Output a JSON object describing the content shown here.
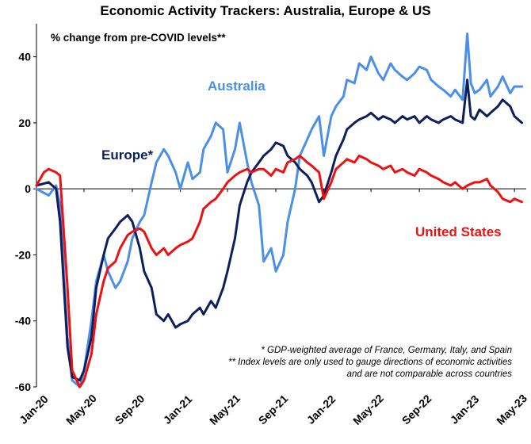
{
  "chart_data": {
    "type": "line",
    "title": "Economic Activity Trackers: Australia, Europe & US",
    "subtitle": "% change from pre-COVID levels**",
    "xlabel": "",
    "ylabel": "",
    "ylim": [
      -60,
      50
    ],
    "yticks": [
      -60,
      -40,
      -20,
      0,
      20,
      40
    ],
    "xlim": [
      "2020-01",
      "2023-05"
    ],
    "xticks": [
      "Jan-20",
      "May-20",
      "Sep-20",
      "Jan-21",
      "May-21",
      "Sep-21",
      "Jan-22",
      "May-22",
      "Sep-22",
      "Jan-23",
      "May-23"
    ],
    "grid": false,
    "series": [
      {
        "name": "Australia",
        "color": "#4a8fe8",
        "points": [
          [
            "2020-01",
            0
          ],
          [
            "2020-02",
            -2
          ],
          [
            "2020-02-20",
            1
          ],
          [
            "2020-03",
            -5
          ],
          [
            "2020-03-20",
            -45
          ],
          [
            "2020-04",
            -58
          ],
          [
            "2020-04-20",
            -60
          ],
          [
            "2020-05",
            -55
          ],
          [
            "2020-05-20",
            -40
          ],
          [
            "2020-06",
            -28
          ],
          [
            "2020-06-20",
            -20
          ],
          [
            "2020-07",
            -25
          ],
          [
            "2020-07-20",
            -30
          ],
          [
            "2020-08",
            -28
          ],
          [
            "2020-08-20",
            -22
          ],
          [
            "2020-09",
            -15
          ],
          [
            "2020-09-20",
            -10
          ],
          [
            "2020-10",
            -8
          ],
          [
            "2020-10-20",
            2
          ],
          [
            "2020-11",
            8
          ],
          [
            "2020-11-20",
            12
          ],
          [
            "2020-12",
            10
          ],
          [
            "2020-12-20",
            5
          ],
          [
            "2021-01",
            0
          ],
          [
            "2021-01-20",
            8
          ],
          [
            "2021-02",
            3
          ],
          [
            "2021-02-20",
            5
          ],
          [
            "2021-03",
            12
          ],
          [
            "2021-03-20",
            16
          ],
          [
            "2021-04",
            20
          ],
          [
            "2021-04-20",
            18
          ],
          [
            "2021-05",
            5
          ],
          [
            "2021-05-20",
            12
          ],
          [
            "2021-06",
            20
          ],
          [
            "2021-06-20",
            8
          ],
          [
            "2021-07",
            2
          ],
          [
            "2021-07-20",
            -5
          ],
          [
            "2021-08",
            -22
          ],
          [
            "2021-08-20",
            -18
          ],
          [
            "2021-09",
            -25
          ],
          [
            "2021-09-20",
            -20
          ],
          [
            "2021-10",
            -10
          ],
          [
            "2021-10-20",
            0
          ],
          [
            "2021-11",
            10
          ],
          [
            "2021-11-20",
            15
          ],
          [
            "2021-12",
            18
          ],
          [
            "2021-12-20",
            22
          ],
          [
            "2022-01",
            10
          ],
          [
            "2022-01-20",
            22
          ],
          [
            "2022-02",
            25
          ],
          [
            "2022-02-20",
            28
          ],
          [
            "2022-03",
            33
          ],
          [
            "2022-03-20",
            32
          ],
          [
            "2022-04",
            38
          ],
          [
            "2022-04-20",
            36
          ],
          [
            "2022-05",
            40
          ],
          [
            "2022-05-20",
            35
          ],
          [
            "2022-06",
            33
          ],
          [
            "2022-06-20",
            38
          ],
          [
            "2022-07",
            36
          ],
          [
            "2022-07-20",
            34
          ],
          [
            "2022-08",
            33
          ],
          [
            "2022-08-20",
            35
          ],
          [
            "2022-09",
            37
          ],
          [
            "2022-09-20",
            36
          ],
          [
            "2022-10",
            33
          ],
          [
            "2022-10-20",
            31
          ],
          [
            "2022-11",
            30
          ],
          [
            "2022-11-20",
            28
          ],
          [
            "2022-12",
            30
          ],
          [
            "2022-12-20",
            27
          ],
          [
            "2023-01",
            47
          ],
          [
            "2023-01-10",
            32
          ],
          [
            "2023-01-20",
            29
          ],
          [
            "2023-02",
            30
          ],
          [
            "2023-02-20",
            33
          ],
          [
            "2023-03",
            28
          ],
          [
            "2023-03-20",
            31
          ],
          [
            "2023-04",
            34
          ],
          [
            "2023-04-20",
            29
          ],
          [
            "2023-05",
            31
          ],
          [
            "2023-05-20",
            31
          ]
        ]
      },
      {
        "name": "Europe*",
        "color": "#0d1f5c",
        "points": [
          [
            "2020-01",
            1
          ],
          [
            "2020-02",
            2
          ],
          [
            "2020-02-20",
            0
          ],
          [
            "2020-03",
            -10
          ],
          [
            "2020-03-20",
            -48
          ],
          [
            "2020-04",
            -57
          ],
          [
            "2020-04-20",
            -58
          ],
          [
            "2020-05",
            -55
          ],
          [
            "2020-05-20",
            -45
          ],
          [
            "2020-06",
            -30
          ],
          [
            "2020-06-20",
            -20
          ],
          [
            "2020-07",
            -15
          ],
          [
            "2020-07-20",
            -12
          ],
          [
            "2020-08",
            -10
          ],
          [
            "2020-08-20",
            -8
          ],
          [
            "2020-09",
            -10
          ],
          [
            "2020-09-20",
            -18
          ],
          [
            "2020-10",
            -25
          ],
          [
            "2020-10-20",
            -30
          ],
          [
            "2020-11",
            -38
          ],
          [
            "2020-11-20",
            -40
          ],
          [
            "2020-12",
            -38
          ],
          [
            "2020-12-20",
            -42
          ],
          [
            "2021-01",
            -41
          ],
          [
            "2021-01-20",
            -40
          ],
          [
            "2021-02",
            -38
          ],
          [
            "2021-02-20",
            -36
          ],
          [
            "2021-03",
            -38
          ],
          [
            "2021-03-20",
            -34
          ],
          [
            "2021-04",
            -36
          ],
          [
            "2021-04-20",
            -30
          ],
          [
            "2021-05",
            -25
          ],
          [
            "2021-05-20",
            -15
          ],
          [
            "2021-06",
            -5
          ],
          [
            "2021-06-20",
            2
          ],
          [
            "2021-07",
            5
          ],
          [
            "2021-07-20",
            8
          ],
          [
            "2021-08",
            10
          ],
          [
            "2021-08-20",
            12
          ],
          [
            "2021-09",
            14
          ],
          [
            "2021-09-20",
            13
          ],
          [
            "2021-10",
            10
          ],
          [
            "2021-10-20",
            8
          ],
          [
            "2021-11",
            6
          ],
          [
            "2021-11-20",
            4
          ],
          [
            "2021-12",
            2
          ],
          [
            "2021-12-20",
            -4
          ],
          [
            "2022-01",
            -2
          ],
          [
            "2022-01-20",
            5
          ],
          [
            "2022-02",
            10
          ],
          [
            "2022-02-20",
            15
          ],
          [
            "2022-03",
            18
          ],
          [
            "2022-03-20",
            20
          ],
          [
            "2022-04",
            21
          ],
          [
            "2022-04-20",
            22
          ],
          [
            "2022-05",
            23
          ],
          [
            "2022-05-20",
            21
          ],
          [
            "2022-06",
            22
          ],
          [
            "2022-06-20",
            21
          ],
          [
            "2022-07",
            20
          ],
          [
            "2022-07-20",
            22
          ],
          [
            "2022-08",
            21
          ],
          [
            "2022-08-20",
            22
          ],
          [
            "2022-09",
            20
          ],
          [
            "2022-09-20",
            22
          ],
          [
            "2022-10",
            21
          ],
          [
            "2022-10-20",
            20
          ],
          [
            "2022-11",
            21
          ],
          [
            "2022-11-20",
            22
          ],
          [
            "2022-12",
            21
          ],
          [
            "2022-12-20",
            20
          ],
          [
            "2023-01",
            33
          ],
          [
            "2023-01-10",
            22
          ],
          [
            "2023-01-20",
            21
          ],
          [
            "2023-02",
            24
          ],
          [
            "2023-02-20",
            22
          ],
          [
            "2023-03",
            23
          ],
          [
            "2023-03-20",
            25
          ],
          [
            "2023-04",
            27
          ],
          [
            "2023-04-20",
            25
          ],
          [
            "2023-05",
            22
          ],
          [
            "2023-05-20",
            20
          ]
        ]
      },
      {
        "name": "United States",
        "color": "#ee1111",
        "points": [
          [
            "2020-01",
            1
          ],
          [
            "2020-01-20",
            5
          ],
          [
            "2020-02",
            6
          ],
          [
            "2020-02-20",
            5
          ],
          [
            "2020-03",
            4
          ],
          [
            "2020-03-20",
            -30
          ],
          [
            "2020-04",
            -55
          ],
          [
            "2020-04-20",
            -60
          ],
          [
            "2020-05",
            -58
          ],
          [
            "2020-05-20",
            -50
          ],
          [
            "2020-06",
            -38
          ],
          [
            "2020-06-20",
            -28
          ],
          [
            "2020-07",
            -24
          ],
          [
            "2020-07-20",
            -22
          ],
          [
            "2020-08",
            -18
          ],
          [
            "2020-08-20",
            -14
          ],
          [
            "2020-09",
            -13
          ],
          [
            "2020-09-20",
            -12
          ],
          [
            "2020-10",
            -13
          ],
          [
            "2020-10-20",
            -18
          ],
          [
            "2020-11",
            -20
          ],
          [
            "2020-11-20",
            -18
          ],
          [
            "2020-12",
            -20
          ],
          [
            "2020-12-20",
            -18
          ],
          [
            "2021-01",
            -17
          ],
          [
            "2021-01-20",
            -16
          ],
          [
            "2021-02",
            -15
          ],
          [
            "2021-02-20",
            -10
          ],
          [
            "2021-03",
            -6
          ],
          [
            "2021-03-20",
            -4
          ],
          [
            "2021-04",
            -3
          ],
          [
            "2021-04-20",
            0
          ],
          [
            "2021-05",
            2
          ],
          [
            "2021-05-20",
            4
          ],
          [
            "2021-06",
            5
          ],
          [
            "2021-06-20",
            6
          ],
          [
            "2021-07",
            5
          ],
          [
            "2021-07-20",
            6
          ],
          [
            "2021-08",
            6
          ],
          [
            "2021-08-20",
            4
          ],
          [
            "2021-09",
            6
          ],
          [
            "2021-09-20",
            5
          ],
          [
            "2021-10",
            8
          ],
          [
            "2021-10-20",
            9
          ],
          [
            "2021-11",
            10
          ],
          [
            "2021-11-20",
            8
          ],
          [
            "2021-12",
            7
          ],
          [
            "2021-12-20",
            5
          ],
          [
            "2022-01",
            -3
          ],
          [
            "2022-01-20",
            2
          ],
          [
            "2022-02",
            6
          ],
          [
            "2022-02-20",
            8
          ],
          [
            "2022-03",
            9
          ],
          [
            "2022-03-20",
            8
          ],
          [
            "2022-04",
            10
          ],
          [
            "2022-04-20",
            9
          ],
          [
            "2022-05",
            8
          ],
          [
            "2022-05-20",
            7
          ],
          [
            "2022-06",
            6
          ],
          [
            "2022-06-20",
            7
          ],
          [
            "2022-07",
            5
          ],
          [
            "2022-07-20",
            6
          ],
          [
            "2022-08",
            5
          ],
          [
            "2022-08-20",
            4
          ],
          [
            "2022-09",
            6
          ],
          [
            "2022-09-20",
            5
          ],
          [
            "2022-10",
            4
          ],
          [
            "2022-10-20",
            3
          ],
          [
            "2022-11",
            2
          ],
          [
            "2022-11-20",
            1
          ],
          [
            "2022-12",
            2
          ],
          [
            "2022-12-20",
            0
          ],
          [
            "2023-01",
            1
          ],
          [
            "2023-01-20",
            2
          ],
          [
            "2023-02",
            2
          ],
          [
            "2023-02-20",
            3
          ],
          [
            "2023-03",
            1
          ],
          [
            "2023-03-20",
            -1
          ],
          [
            "2023-04",
            -3
          ],
          [
            "2023-04-20",
            -4
          ],
          [
            "2023-05",
            -3
          ],
          [
            "2023-05-20",
            -4
          ]
        ]
      }
    ],
    "annotations": [
      "* GDP-weighted average of France, Germany, Italy, and Spain",
      "** Index levels are only used to gauge  directions of economic activities",
      "and are not comparable across countries"
    ]
  }
}
